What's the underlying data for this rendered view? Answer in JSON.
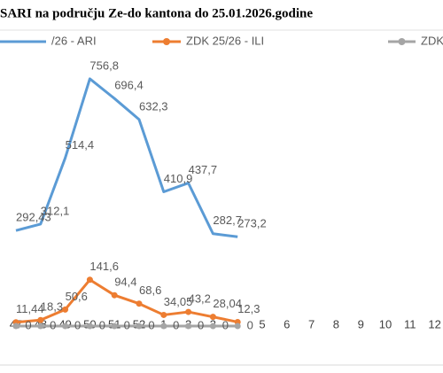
{
  "chart_data": {
    "type": "line",
    "title": "SARI na području Ze-do kantona do 25.01.2026.godine",
    "categories": [
      "47",
      "48",
      "49",
      "50",
      "51",
      "52",
      "1",
      "2",
      "3",
      "4",
      "5",
      "6",
      "7",
      "8",
      "9",
      "10",
      "11",
      "12"
    ],
    "ylim": [
      0,
      800
    ],
    "series": [
      {
        "name": "/26 - ARI",
        "color": "#5b9bd5",
        "markers": false,
        "values": [
          292.43,
          312.1,
          514.4,
          756.8,
          696.4,
          632.3,
          410.9,
          437.7,
          282.7,
          273.2,
          null,
          null,
          null,
          null,
          null,
          null,
          null,
          null
        ],
        "value_labels": [
          "292,43",
          "312,1",
          "514,4",
          "756,8",
          "696,4",
          "632,3",
          "410,9",
          "437,7",
          "282,7",
          "273,2",
          null,
          null,
          null,
          null,
          null,
          null,
          null,
          null
        ]
      },
      {
        "name": "ZDK 25/26 - ILI",
        "color": "#ed7d31",
        "markers": true,
        "values": [
          11.44,
          18.3,
          50.6,
          141.6,
          94.4,
          68.6,
          34.05,
          43.2,
          28.04,
          12.3,
          null,
          null,
          null,
          null,
          null,
          null,
          null,
          null
        ],
        "value_labels": [
          "11,44",
          "18,3",
          "50,6",
          "141,6",
          "94,4",
          "68,6",
          "34,05",
          "43,2",
          "28,04",
          "12,3",
          null,
          null,
          null,
          null,
          null,
          null,
          null,
          null
        ]
      },
      {
        "name": "ZDK",
        "color": "#a5a5a5",
        "markers": true,
        "values": [
          0,
          0,
          0,
          0,
          0,
          0,
          0,
          0,
          0,
          0,
          null,
          null,
          null,
          null,
          null,
          null,
          null,
          null
        ]
      }
    ]
  }
}
